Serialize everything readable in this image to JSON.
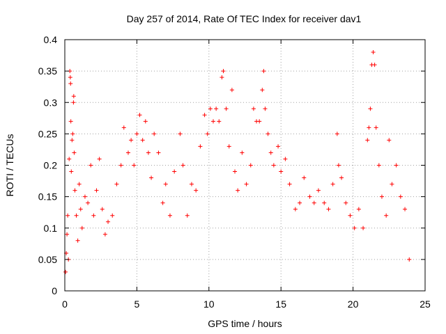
{
  "chart_data": {
    "type": "scatter",
    "title": "Day 257 of 2014, Rate Of TEC Index for receiver dav1",
    "xlabel": "GPS time / hours",
    "ylabel": "ROTI / TECUs",
    "xlim": [
      0,
      25
    ],
    "ylim": [
      0,
      0.4
    ],
    "xticks": [
      0,
      5,
      10,
      15,
      20,
      25
    ],
    "xtick_labels": [
      "0",
      "5",
      "10",
      "15",
      "20",
      "25"
    ],
    "yticks": [
      0,
      0.05,
      0.1,
      0.15,
      0.2,
      0.25,
      0.3,
      0.35,
      0.4
    ],
    "ytick_labels": [
      "0",
      "0.05",
      "0.1",
      "0.15",
      "0.2",
      "0.25",
      "0.3",
      "0.35",
      "0.4"
    ],
    "grid": true,
    "marker": "+",
    "marker_color": "#ff0000",
    "series": [
      {
        "name": "ROTI",
        "points": [
          [
            0.05,
            0.03
          ],
          [
            0.1,
            0.06
          ],
          [
            0.15,
            0.09
          ],
          [
            0.2,
            0.12
          ],
          [
            0.25,
            0.05
          ],
          [
            0.3,
            0.21
          ],
          [
            0.35,
            0.35
          ],
          [
            0.38,
            0.34
          ],
          [
            0.4,
            0.33
          ],
          [
            0.42,
            0.27
          ],
          [
            0.45,
            0.19
          ],
          [
            0.5,
            0.24
          ],
          [
            0.55,
            0.25
          ],
          [
            0.6,
            0.3
          ],
          [
            0.62,
            0.31
          ],
          [
            0.65,
            0.22
          ],
          [
            0.7,
            0.16
          ],
          [
            0.8,
            0.12
          ],
          [
            0.9,
            0.08
          ],
          [
            1.0,
            0.17
          ],
          [
            1.1,
            0.13
          ],
          [
            1.2,
            0.1
          ],
          [
            1.4,
            0.15
          ],
          [
            1.6,
            0.14
          ],
          [
            1.8,
            0.2
          ],
          [
            2.0,
            0.12
          ],
          [
            2.2,
            0.16
          ],
          [
            2.4,
            0.21
          ],
          [
            2.6,
            0.13
          ],
          [
            2.8,
            0.09
          ],
          [
            3.0,
            0.11
          ],
          [
            3.3,
            0.12
          ],
          [
            3.6,
            0.17
          ],
          [
            3.9,
            0.2
          ],
          [
            4.1,
            0.26
          ],
          [
            4.4,
            0.22
          ],
          [
            4.6,
            0.24
          ],
          [
            4.8,
            0.2
          ],
          [
            5.0,
            0.25
          ],
          [
            5.2,
            0.28
          ],
          [
            5.4,
            0.24
          ],
          [
            5.6,
            0.27
          ],
          [
            5.8,
            0.22
          ],
          [
            6.0,
            0.18
          ],
          [
            6.2,
            0.25
          ],
          [
            6.5,
            0.22
          ],
          [
            6.8,
            0.14
          ],
          [
            7.0,
            0.17
          ],
          [
            7.3,
            0.12
          ],
          [
            7.6,
            0.19
          ],
          [
            8.0,
            0.25
          ],
          [
            8.2,
            0.2
          ],
          [
            8.5,
            0.12
          ],
          [
            8.8,
            0.17
          ],
          [
            9.1,
            0.16
          ],
          [
            9.4,
            0.23
          ],
          [
            9.7,
            0.28
          ],
          [
            9.9,
            0.25
          ],
          [
            10.1,
            0.29
          ],
          [
            10.3,
            0.27
          ],
          [
            10.5,
            0.29
          ],
          [
            10.7,
            0.27
          ],
          [
            10.9,
            0.34
          ],
          [
            11.0,
            0.35
          ],
          [
            11.2,
            0.29
          ],
          [
            11.4,
            0.23
          ],
          [
            11.6,
            0.32
          ],
          [
            11.8,
            0.19
          ],
          [
            12.0,
            0.16
          ],
          [
            12.3,
            0.22
          ],
          [
            12.6,
            0.17
          ],
          [
            12.9,
            0.2
          ],
          [
            13.1,
            0.29
          ],
          [
            13.3,
            0.27
          ],
          [
            13.5,
            0.27
          ],
          [
            13.7,
            0.32
          ],
          [
            13.8,
            0.35
          ],
          [
            13.9,
            0.29
          ],
          [
            14.1,
            0.25
          ],
          [
            14.3,
            0.22
          ],
          [
            14.5,
            0.2
          ],
          [
            14.8,
            0.23
          ],
          [
            15.0,
            0.19
          ],
          [
            15.3,
            0.21
          ],
          [
            15.6,
            0.17
          ],
          [
            16.0,
            0.13
          ],
          [
            16.3,
            0.14
          ],
          [
            16.6,
            0.18
          ],
          [
            17.0,
            0.15
          ],
          [
            17.3,
            0.14
          ],
          [
            17.6,
            0.16
          ],
          [
            18.0,
            0.14
          ],
          [
            18.3,
            0.13
          ],
          [
            18.6,
            0.17
          ],
          [
            18.9,
            0.25
          ],
          [
            19.0,
            0.2
          ],
          [
            19.2,
            0.18
          ],
          [
            19.5,
            0.14
          ],
          [
            19.8,
            0.12
          ],
          [
            20.1,
            0.1
          ],
          [
            20.4,
            0.13
          ],
          [
            20.7,
            0.1
          ],
          [
            21.0,
            0.24
          ],
          [
            21.1,
            0.26
          ],
          [
            21.2,
            0.29
          ],
          [
            21.3,
            0.36
          ],
          [
            21.4,
            0.38
          ],
          [
            21.5,
            0.36
          ],
          [
            21.6,
            0.26
          ],
          [
            21.8,
            0.2
          ],
          [
            22.0,
            0.15
          ],
          [
            22.3,
            0.12
          ],
          [
            22.5,
            0.24
          ],
          [
            22.7,
            0.17
          ],
          [
            23.0,
            0.2
          ],
          [
            23.3,
            0.15
          ],
          [
            23.6,
            0.13
          ],
          [
            23.9,
            0.05
          ]
        ]
      }
    ]
  }
}
